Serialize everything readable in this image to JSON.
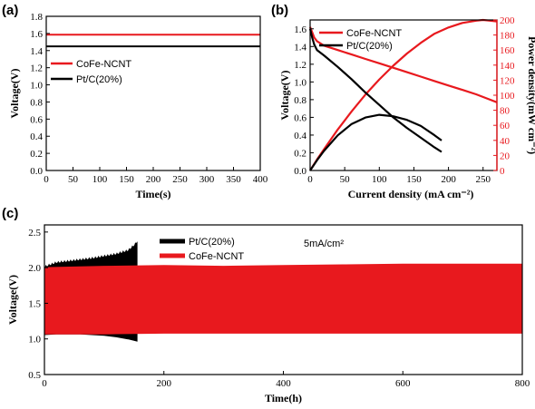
{
  "colors": {
    "red": "#e8191e",
    "black": "#000000"
  },
  "chart_data": [
    {
      "panel": "(a)",
      "type": "line",
      "xlabel": "Time(s)",
      "ylabel": "Voltage(V)",
      "xlim": [
        0,
        400
      ],
      "ylim": [
        0.0,
        1.8
      ],
      "xticks": [
        "0",
        "50",
        "100",
        "150",
        "200",
        "250",
        "300",
        "350",
        "400"
      ],
      "yticks": [
        "0.0",
        "0.2",
        "0.4",
        "0.6",
        "0.8",
        "1.0",
        "1.2",
        "1.4",
        "1.6",
        "1.8"
      ],
      "legend": [
        "CoFe-NCNT",
        "Pt/C(20%)"
      ],
      "series": [
        {
          "name": "CoFe-NCNT",
          "color": "#e8191e",
          "x": [
            0,
            400
          ],
          "y": [
            1.585,
            1.585
          ]
        },
        {
          "name": "Pt/C(20%)",
          "color": "#000000",
          "x": [
            0,
            400
          ],
          "y": [
            1.45,
            1.45
          ]
        }
      ]
    },
    {
      "panel": "(b)",
      "type": "line",
      "xlabel": "Current density (mA cm⁻²)",
      "ylabel": "Voltage(V)",
      "y2label": "Power density(mW cm⁻²)",
      "xlim": [
        0,
        270
      ],
      "ylim": [
        0.0,
        1.7
      ],
      "y2lim": [
        0,
        200
      ],
      "xticks": [
        "0",
        "50",
        "100",
        "150",
        "200",
        "250"
      ],
      "yticks": [
        "0.0",
        "0.2",
        "0.4",
        "0.6",
        "0.8",
        "1.0",
        "1.2",
        "1.4",
        "1.6"
      ],
      "y2ticks": [
        "0",
        "20",
        "40",
        "60",
        "80",
        "100",
        "120",
        "140",
        "160",
        "180",
        "200"
      ],
      "legend": [
        "CoFe-NCNT",
        "Pt/C(20%)"
      ],
      "series": [
        {
          "name": "CoFe-NCNT",
          "kind": "voltage",
          "color": "#e8191e",
          "x": [
            0,
            3,
            6,
            10,
            20,
            40,
            60,
            80,
            100,
            120,
            140,
            160,
            180,
            200,
            220,
            240,
            260,
            270
          ],
          "y": [
            1.62,
            1.56,
            1.5,
            1.46,
            1.41,
            1.36,
            1.31,
            1.26,
            1.21,
            1.16,
            1.11,
            1.06,
            1.01,
            0.96,
            0.91,
            0.86,
            0.8,
            0.77
          ]
        },
        {
          "name": "CoFe-NCNT",
          "kind": "power",
          "color": "#e8191e",
          "x": [
            0,
            10,
            20,
            40,
            60,
            80,
            100,
            120,
            140,
            160,
            180,
            200,
            220,
            240,
            250,
            260,
            270
          ],
          "y": [
            0,
            14.6,
            28.2,
            54.4,
            78.6,
            100.8,
            121,
            139.2,
            155.4,
            169.6,
            181.8,
            190,
            196,
            199,
            200,
            199,
            198
          ]
        },
        {
          "name": "Pt/C(20%)",
          "kind": "voltage",
          "color": "#000000",
          "x": [
            0,
            3,
            6,
            10,
            20,
            40,
            60,
            80,
            100,
            120,
            140,
            160,
            180,
            190
          ],
          "y": [
            1.6,
            1.5,
            1.42,
            1.36,
            1.3,
            1.17,
            1.03,
            0.88,
            0.74,
            0.6,
            0.48,
            0.37,
            0.26,
            0.21
          ]
        },
        {
          "name": "Pt/C(20%)",
          "kind": "power",
          "color": "#000000",
          "x": [
            0,
            10,
            20,
            40,
            60,
            80,
            100,
            120,
            140,
            160,
            180,
            190
          ],
          "y": [
            0,
            13.6,
            26,
            46.8,
            61.8,
            70.4,
            74,
            72,
            67.2,
            59.2,
            46.8,
            39.9
          ]
        }
      ]
    },
    {
      "panel": "(c)",
      "type": "area",
      "xlabel": "Time(h)",
      "ylabel": "Voltage(V)",
      "annotation": "5mA/cm²",
      "xlim": [
        0,
        800
      ],
      "ylim": [
        0.5,
        2.6
      ],
      "xticks": [
        "0",
        "200",
        "400",
        "600",
        "800"
      ],
      "yticks": [
        "0.5",
        "1.0",
        "1.5",
        "2.0",
        "2.5"
      ],
      "legend": [
        "Pt/C(20%)",
        "CoFe-NCNT"
      ],
      "series": [
        {
          "name": "Pt/C(20%)",
          "color": "#000000",
          "x": [
            0,
            20,
            40,
            60,
            80,
            100,
            120,
            140,
            150,
            155
          ],
          "upper": [
            2.0,
            2.06,
            2.08,
            2.1,
            2.12,
            2.15,
            2.18,
            2.23,
            2.3,
            2.35
          ],
          "lower": [
            1.06,
            1.07,
            1.07,
            1.07,
            1.06,
            1.05,
            1.03,
            1.0,
            0.98,
            0.97
          ]
        },
        {
          "name": "CoFe-NCNT",
          "color": "#e8191e",
          "x": [
            0,
            100,
            200,
            300,
            400,
            500,
            600,
            700,
            800
          ],
          "upper": [
            2.0,
            2.02,
            2.03,
            2.02,
            2.03,
            2.04,
            2.05,
            2.05,
            2.05
          ],
          "lower": [
            1.07,
            1.07,
            1.08,
            1.08,
            1.08,
            1.08,
            1.08,
            1.08,
            1.08
          ]
        }
      ]
    }
  ]
}
